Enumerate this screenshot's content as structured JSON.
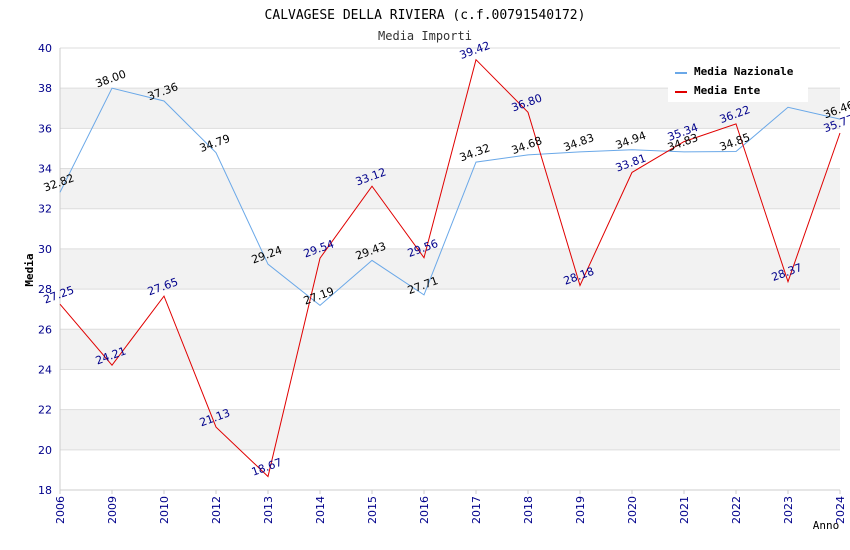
{
  "chart_data": {
    "type": "line",
    "title": "CALVAGESE DELLA RIVIERA (c.f.00791540172)",
    "subtitle": "Media Importi",
    "xlabel": "Anno",
    "ylabel": "Media",
    "ylim": [
      18,
      40
    ],
    "yticks": [
      "18",
      "20",
      "22",
      "24",
      "26",
      "28",
      "30",
      "32",
      "34",
      "36",
      "38",
      "40"
    ],
    "categories": [
      "2006",
      "2009",
      "2010",
      "2012",
      "2013",
      "2014",
      "2015",
      "2016",
      "2017",
      "2018",
      "2019",
      "2020",
      "2021",
      "2022",
      "2023",
      "2024"
    ],
    "series": [
      {
        "name": "Media Nazionale",
        "color": "#6aa8e8",
        "label_color": "#000000",
        "values": [
          32.82,
          38.0,
          37.36,
          34.79,
          29.24,
          27.19,
          29.43,
          27.71,
          34.32,
          34.68,
          34.83,
          34.94,
          34.83,
          34.85,
          37.05,
          36.46
        ],
        "labels": [
          "32.82",
          "38.00",
          "37.36",
          "34.79",
          "29.24",
          "27.19",
          "29.43",
          "27.71",
          "34.32",
          "34.68",
          "34.83",
          "34.94",
          "34.83",
          "34.85",
          "",
          "36.46"
        ]
      },
      {
        "name": "Media Ente",
        "color": "#e00000",
        "label_color": "#00008b",
        "values": [
          27.25,
          24.21,
          27.65,
          21.13,
          18.67,
          29.54,
          33.12,
          29.56,
          39.42,
          36.8,
          28.18,
          33.81,
          35.34,
          36.22,
          28.37,
          35.77
        ],
        "labels": [
          "27.25",
          "24.21",
          "27.65",
          "21.13",
          "18.67",
          "29.54",
          "33.12",
          "29.56",
          "39.42",
          "36.80",
          "28.18",
          "33.81",
          "35.34",
          "36.22",
          "28.37",
          "35.77"
        ]
      }
    ],
    "grid": true,
    "legend": "top-right"
  }
}
